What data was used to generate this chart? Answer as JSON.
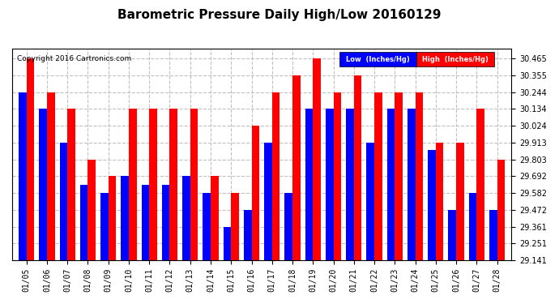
{
  "title": "Barometric Pressure Daily High/Low 20160129",
  "copyright": "Copyright 2016 Cartronics.com",
  "dates": [
    "01/05",
    "01/06",
    "01/07",
    "01/08",
    "01/09",
    "01/10",
    "01/11",
    "01/12",
    "01/13",
    "01/14",
    "01/15",
    "01/16",
    "01/17",
    "01/18",
    "01/19",
    "01/20",
    "01/21",
    "01/22",
    "01/23",
    "01/24",
    "01/25",
    "01/26",
    "01/27",
    "01/28"
  ],
  "high": [
    30.465,
    30.244,
    30.134,
    29.803,
    29.692,
    30.134,
    30.134,
    30.134,
    30.134,
    29.692,
    29.582,
    30.024,
    30.244,
    30.355,
    30.465,
    30.244,
    30.355,
    30.244,
    30.244,
    30.244,
    29.913,
    29.913,
    30.134,
    29.803
  ],
  "low": [
    30.244,
    30.134,
    29.913,
    29.634,
    29.582,
    29.692,
    29.634,
    29.634,
    29.692,
    29.582,
    29.361,
    29.472,
    29.913,
    29.582,
    30.134,
    30.134,
    30.134,
    29.913,
    30.134,
    30.134,
    29.862,
    29.472,
    29.582,
    29.472
  ],
  "ylim_min": 29.141,
  "ylim_max": 30.53,
  "yticks": [
    29.141,
    29.251,
    29.361,
    29.472,
    29.582,
    29.692,
    29.803,
    29.913,
    30.024,
    30.134,
    30.244,
    30.355,
    30.465
  ],
  "high_color": "#ff0000",
  "low_color": "#0000ff",
  "bg_color": "#ffffff",
  "grid_color": "#c0c0c0",
  "title_fontsize": 11,
  "legend_low_label": "Low  (Inches/Hg)",
  "legend_high_label": "High  (Inches/Hg)"
}
